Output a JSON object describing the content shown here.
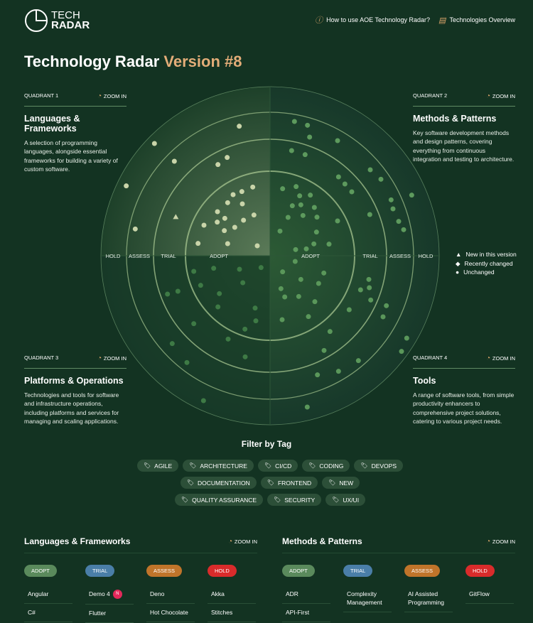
{
  "header": {
    "logo_line1": "TECH",
    "logo_line2": "RADAR",
    "help_link": "How to use AOE Technology Radar?",
    "overview_link": "Technologies Overview"
  },
  "title": {
    "main": "Technology Radar",
    "version": "Version #8"
  },
  "colors": {
    "accent": "#e3ad78",
    "background": "#133322",
    "adopt": "#5a8a5c",
    "trial": "#4a7ea8",
    "assess": "#c0742a",
    "hold": "#d92b2b",
    "new_badge": "#e3285a"
  },
  "quadrants": [
    {
      "label": "QUADRANT 1",
      "zoom": "ZOOM IN",
      "title": "Languages & Frameworks",
      "desc": "A selection of programming languages, alongside essential frameworks for building a variety of custom software."
    },
    {
      "label": "QUADRANT 2",
      "zoom": "ZOOM IN",
      "title": "Methods & Patterns",
      "desc": "Key software development methods and design patterns, covering everything from continuous integration and testing to architecture."
    },
    {
      "label": "QUADRANT 3",
      "zoom": "ZOOM IN",
      "title": "Platforms & Operations",
      "desc": "Technologies and tools for software and infrastructure operations, including platforms and services for managing and scaling applications."
    },
    {
      "label": "QUADRANT 4",
      "zoom": "ZOOM IN",
      "title": "Tools",
      "desc": "A range of software tools, from simple productivity enhancers to comprehensive project solutions, catering to various project needs."
    }
  ],
  "rings": [
    "ADOPT",
    "TRIAL",
    "ASSESS",
    "HOLD"
  ],
  "legend": {
    "new": "New in this version",
    "changed": "Recently changed",
    "unchanged": "Unchanged"
  },
  "filter": {
    "title": "Filter by Tag",
    "tags": [
      "AGILE",
      "ARCHITECTURE",
      "CI/CD",
      "CODING",
      "DEVOPS",
      "DOCUMENTATION",
      "FRONTEND",
      "NEW",
      "QUALITY ASSURANCE",
      "SECURITY",
      "UX/UI"
    ]
  },
  "sections": [
    {
      "title": "Languages & Frameworks",
      "zoom": "ZOOM IN",
      "columns": [
        {
          "ring": "ADOPT",
          "items": [
            "Angular",
            "C#"
          ]
        },
        {
          "ring": "TRIAL",
          "items": [
            "Demo 4",
            "Flutter"
          ],
          "new_badge": "N"
        },
        {
          "ring": "ASSESS",
          "items": [
            "Deno",
            "Hot Chocolate"
          ]
        },
        {
          "ring": "HOLD",
          "items": [
            "Akka",
            "Stitches"
          ]
        }
      ]
    },
    {
      "title": "Methods & Patterns",
      "zoom": "ZOOM IN",
      "columns": [
        {
          "ring": "ADOPT",
          "items": [
            "ADR",
            "API-First"
          ]
        },
        {
          "ring": "TRIAL",
          "items": [
            "Complexity Management"
          ]
        },
        {
          "ring": "ASSESS",
          "items": [
            "AI Assisted Programming"
          ]
        },
        {
          "ring": "HOLD",
          "items": [
            "GitFlow"
          ]
        }
      ]
    }
  ]
}
